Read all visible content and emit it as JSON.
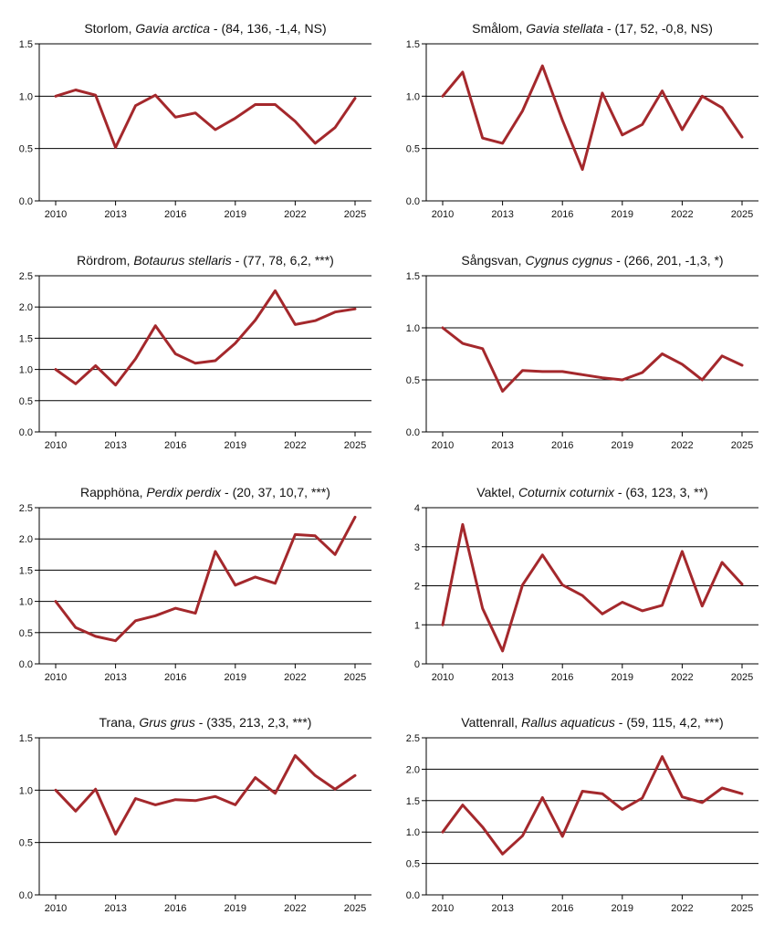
{
  "line_color": "#a4282c",
  "chart_data": [
    {
      "type": "line",
      "title_plain": "Storlom, ",
      "title_italic": "Gavia arctica",
      "title_rest": " - (84, 136, -1,4, NS)",
      "x": [
        2010,
        2011,
        2012,
        2013,
        2014,
        2015,
        2016,
        2017,
        2018,
        2019,
        2020,
        2021,
        2022,
        2023,
        2024,
        2025
      ],
      "xticks": [
        2010,
        2013,
        2016,
        2019,
        2022,
        2025
      ],
      "values": [
        1.0,
        1.06,
        1.01,
        0.51,
        0.91,
        1.01,
        0.8,
        0.84,
        0.68,
        0.79,
        0.92,
        0.92,
        0.76,
        0.55,
        0.7,
        0.98
      ],
      "ylim": [
        0,
        1.5
      ],
      "yticks": [
        0,
        0.5,
        1.0,
        1.5
      ],
      "ytick_labels": [
        "0.0",
        "0.5",
        "1.0",
        "1.5"
      ]
    },
    {
      "type": "line",
      "title_plain": "Smålom, ",
      "title_italic": "Gavia stellata",
      "title_rest": " - (17, 52, -0,8, NS)",
      "x": [
        2010,
        2011,
        2012,
        2013,
        2014,
        2015,
        2016,
        2017,
        2018,
        2019,
        2020,
        2021,
        2022,
        2023,
        2024,
        2025
      ],
      "xticks": [
        2010,
        2013,
        2016,
        2019,
        2022,
        2025
      ],
      "values": [
        1.0,
        1.23,
        0.6,
        0.55,
        0.86,
        1.29,
        0.77,
        0.3,
        1.03,
        0.63,
        0.73,
        1.05,
        0.68,
        1.0,
        0.89,
        0.61
      ],
      "ylim": [
        0,
        1.5
      ],
      "yticks": [
        0,
        0.5,
        1.0,
        1.5
      ],
      "ytick_labels": [
        "0.0",
        "0.5",
        "1.0",
        "1.5"
      ]
    },
    {
      "type": "line",
      "title_plain": "Rördrom, ",
      "title_italic": "Botaurus stellaris",
      "title_rest": " - (77, 78, 6,2, ***)",
      "x": [
        2010,
        2011,
        2012,
        2013,
        2014,
        2015,
        2016,
        2017,
        2018,
        2019,
        2020,
        2021,
        2022,
        2023,
        2024,
        2025
      ],
      "xticks": [
        2010,
        2013,
        2016,
        2019,
        2022,
        2025
      ],
      "values": [
        1.0,
        0.77,
        1.06,
        0.75,
        1.17,
        1.7,
        1.25,
        1.1,
        1.14,
        1.42,
        1.79,
        2.26,
        1.72,
        1.78,
        1.92,
        1.97
      ],
      "ylim": [
        0,
        2.5
      ],
      "yticks": [
        0,
        0.5,
        1.0,
        1.5,
        2.0,
        2.5
      ],
      "ytick_labels": [
        "0.0",
        "0.5",
        "1.0",
        "1.5",
        "2.0",
        "2.5"
      ]
    },
    {
      "type": "line",
      "title_plain": "Sångsvan, ",
      "title_italic": "Cygnus cygnus",
      "title_rest": " - (266, 201, -1,3, *)",
      "x": [
        2010,
        2011,
        2012,
        2013,
        2014,
        2015,
        2016,
        2017,
        2018,
        2019,
        2020,
        2021,
        2022,
        2023,
        2024,
        2025
      ],
      "xticks": [
        2010,
        2013,
        2016,
        2019,
        2022,
        2025
      ],
      "values": [
        1.0,
        0.85,
        0.8,
        0.39,
        0.59,
        0.58,
        0.58,
        0.55,
        0.52,
        0.5,
        0.57,
        0.75,
        0.65,
        0.5,
        0.73,
        0.64
      ],
      "ylim": [
        0,
        1.5
      ],
      "yticks": [
        0,
        0.5,
        1.0,
        1.5
      ],
      "ytick_labels": [
        "0.0",
        "0.5",
        "1.0",
        "1.5"
      ]
    },
    {
      "type": "line",
      "title_plain": "Rapphöna, ",
      "title_italic": "Perdix perdix",
      "title_rest": " - (20, 37, 10,7, ***)",
      "x": [
        2010,
        2011,
        2012,
        2013,
        2014,
        2015,
        2016,
        2017,
        2018,
        2019,
        2020,
        2021,
        2022,
        2023,
        2024,
        2025
      ],
      "xticks": [
        2010,
        2013,
        2016,
        2019,
        2022,
        2025
      ],
      "values": [
        1.0,
        0.58,
        0.44,
        0.37,
        0.69,
        0.77,
        0.89,
        0.81,
        1.8,
        1.26,
        1.39,
        1.29,
        2.07,
        2.05,
        1.75,
        2.35
      ],
      "ylim": [
        0,
        2.5
      ],
      "yticks": [
        0,
        0.5,
        1.0,
        1.5,
        2.0,
        2.5
      ],
      "ytick_labels": [
        "0.0",
        "0.5",
        "1.0",
        "1.5",
        "2.0",
        "2.5"
      ]
    },
    {
      "type": "line",
      "title_plain": "Vaktel, ",
      "title_italic": "Coturnix coturnix",
      "title_rest": " - (63, 123, 3, **)",
      "x": [
        2010,
        2011,
        2012,
        2013,
        2014,
        2015,
        2016,
        2017,
        2018,
        2019,
        2020,
        2021,
        2022,
        2023,
        2024,
        2025
      ],
      "xticks": [
        2010,
        2013,
        2016,
        2019,
        2022,
        2025
      ],
      "values": [
        1.0,
        3.57,
        1.42,
        0.33,
        2.02,
        2.79,
        2.02,
        1.75,
        1.28,
        1.58,
        1.36,
        1.5,
        2.88,
        1.48,
        2.6,
        2.04
      ],
      "ylim": [
        0,
        4
      ],
      "yticks": [
        0,
        1,
        2,
        3,
        4
      ],
      "ytick_labels": [
        "0",
        "1",
        "2",
        "3",
        "4"
      ]
    },
    {
      "type": "line",
      "title_plain": "Trana, ",
      "title_italic": "Grus grus",
      "title_rest": " - (335, 213, 2,3, ***)",
      "x": [
        2010,
        2011,
        2012,
        2013,
        2014,
        2015,
        2016,
        2017,
        2018,
        2019,
        2020,
        2021,
        2022,
        2023,
        2024,
        2025
      ],
      "xticks": [
        2010,
        2013,
        2016,
        2019,
        2022,
        2025
      ],
      "values": [
        1.0,
        0.8,
        1.01,
        0.58,
        0.92,
        0.86,
        0.91,
        0.9,
        0.94,
        0.86,
        1.12,
        0.97,
        1.33,
        1.14,
        1.01,
        1.14
      ],
      "ylim": [
        0,
        1.5
      ],
      "yticks": [
        0,
        0.5,
        1.0,
        1.5
      ],
      "ytick_labels": [
        "0.0",
        "0.5",
        "1.0",
        "1.5"
      ]
    },
    {
      "type": "line",
      "title_plain": "Vattenrall, ",
      "title_italic": "Rallus aquaticus",
      "title_rest": " - (59, 115, 4,2, ***)",
      "x": [
        2010,
        2011,
        2012,
        2013,
        2014,
        2015,
        2016,
        2017,
        2018,
        2019,
        2020,
        2021,
        2022,
        2023,
        2024,
        2025
      ],
      "xticks": [
        2010,
        2013,
        2016,
        2019,
        2022,
        2025
      ],
      "values": [
        1.0,
        1.43,
        1.08,
        0.65,
        0.94,
        1.55,
        0.93,
        1.65,
        1.61,
        1.36,
        1.54,
        2.2,
        1.56,
        1.47,
        1.7,
        1.61
      ],
      "ylim": [
        0,
        2.5
      ],
      "yticks": [
        0,
        0.5,
        1.0,
        1.5,
        2.0,
        2.5
      ],
      "ytick_labels": [
        "0.0",
        "0.5",
        "1.0",
        "1.5",
        "2.0",
        "2.5"
      ]
    }
  ]
}
